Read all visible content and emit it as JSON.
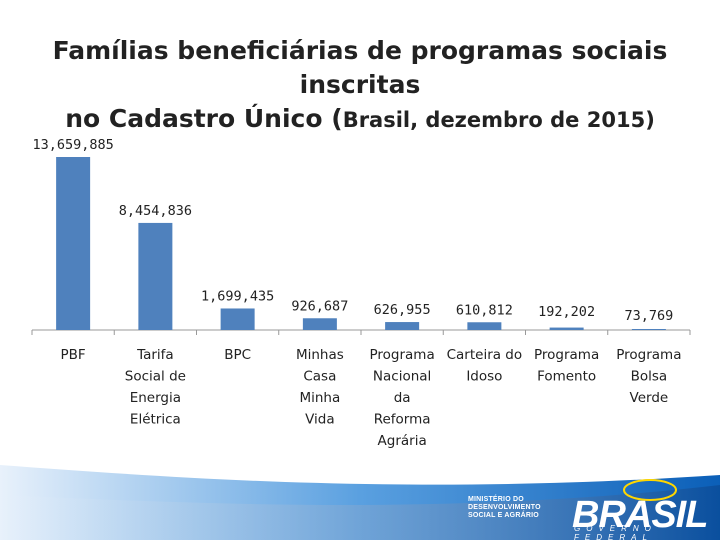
{
  "chart_data": {
    "type": "bar",
    "title_line1": "Famílias beneficiárias de programas sociais inscritas",
    "title_line2_bold": "no Cadastro Único (",
    "title_line2_rest": "Brasil, dezembro de 2015)",
    "categories": [
      [
        "PBF"
      ],
      [
        "Tarifa",
        "Social de",
        "Energia",
        "Elétrica"
      ],
      [
        "BPC"
      ],
      [
        "Minhas",
        "Casa",
        "Minha",
        "Vida"
      ],
      [
        "Programa",
        "Nacional",
        "da",
        "Reforma",
        "Agrária"
      ],
      [
        "Carteira do",
        "Idoso"
      ],
      [
        "Programa",
        "Fomento"
      ],
      [
        "Programa",
        "Bolsa",
        "Verde"
      ]
    ],
    "values": [
      13659885,
      8454836,
      1699435,
      926687,
      626955,
      610812,
      192202,
      73769
    ],
    "value_labels": [
      "13,659,885",
      "8,454,836",
      "1,699,435",
      "926,687",
      "626,955",
      "610,812",
      "192,202",
      "73,769"
    ],
    "ylim": [
      0,
      13659885
    ],
    "bar_color": "#4f81bd",
    "axis_color": "#999999"
  },
  "footer": {
    "ministry_lines": [
      "MINISTÉRIO DO",
      "DESENVOLVIMENTO",
      "SOCIAL E AGRÁRIO"
    ],
    "brand": "BRASIL",
    "brand_sub": "GOVERNO FEDERAL",
    "wave_color": "#1a73c8"
  }
}
